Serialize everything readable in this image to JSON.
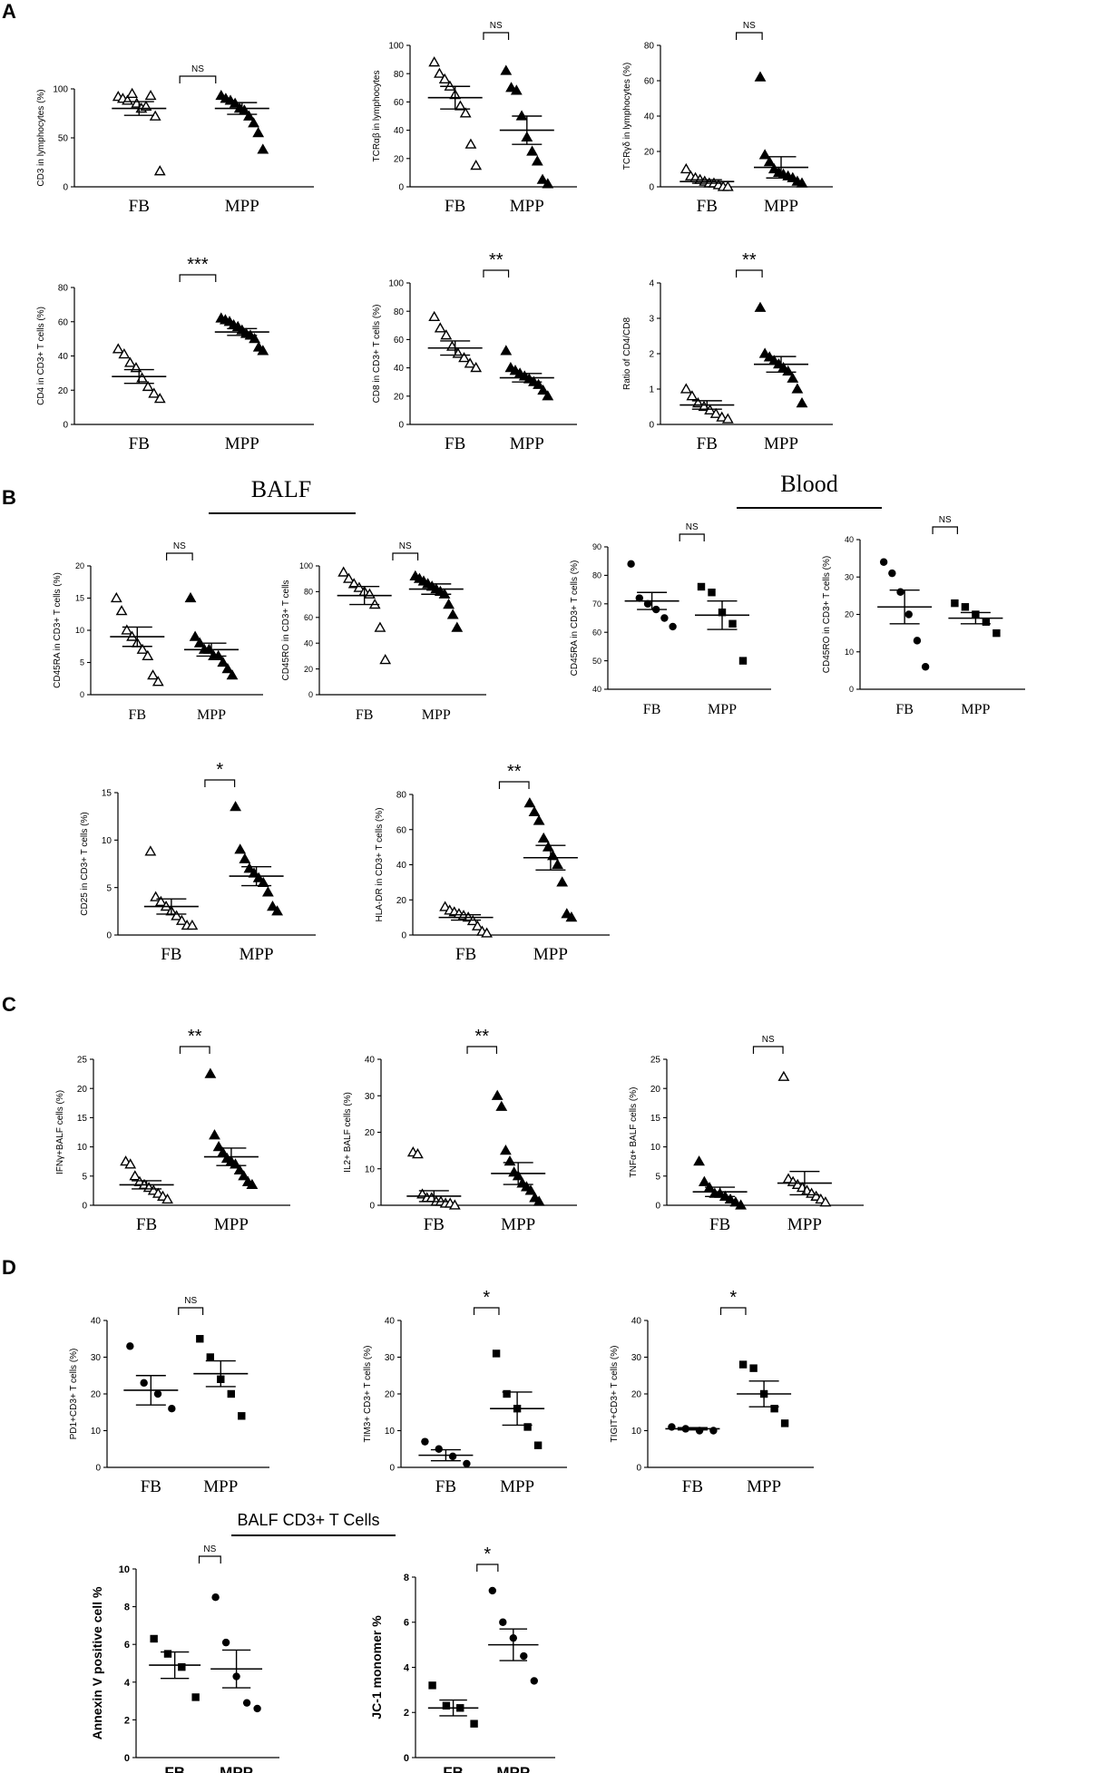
{
  "panels": [
    {
      "label": "A"
    },
    {
      "label": "B",
      "headers": [
        "BALF",
        "Blood"
      ]
    },
    {
      "label": "C"
    },
    {
      "label": "D",
      "headers": [
        "BALF CD3+ T Cells"
      ]
    }
  ],
  "chart_data": [
    {
      "id": "a1",
      "type": "scatter",
      "ylabel": "CD3 in lymphocytes (%)",
      "ylim": [
        0,
        100
      ],
      "yticks": [
        0,
        50,
        100
      ],
      "categories": [
        "FB",
        "MPP"
      ],
      "significance": "NS",
      "markers": [
        "triangle-open",
        "triangle"
      ],
      "series": [
        {
          "values": [
            92,
            90,
            88,
            95,
            85,
            80,
            82,
            93,
            72,
            16
          ],
          "mean": 80,
          "sem": 7
        },
        {
          "values": [
            93,
            90,
            88,
            85,
            80,
            78,
            72,
            65,
            55,
            38
          ],
          "mean": 80,
          "sem": 6
        }
      ]
    },
    {
      "id": "a2",
      "type": "scatter",
      "ylabel": "TCRαβ in lymphocytes",
      "ylim": [
        0,
        100
      ],
      "yticks": [
        0,
        20,
        40,
        60,
        80,
        100
      ],
      "categories": [
        "FB",
        "MPP"
      ],
      "significance": "NS",
      "markers": [
        "triangle-open",
        "triangle"
      ],
      "series": [
        {
          "values": [
            88,
            80,
            76,
            71,
            65,
            57,
            52,
            30,
            15
          ],
          "mean": 63,
          "sem": 8
        },
        {
          "values": [
            82,
            70,
            68,
            50,
            35,
            25,
            18,
            5,
            2
          ],
          "mean": 40,
          "sem": 10
        }
      ]
    },
    {
      "id": "a3",
      "type": "scatter",
      "ylabel": "TCRγδ in lymphocytes (%)",
      "ylim": [
        0,
        80
      ],
      "yticks": [
        0,
        20,
        40,
        60,
        80
      ],
      "categories": [
        "FB",
        "MPP"
      ],
      "significance": "NS",
      "markers": [
        "triangle-open",
        "triangle"
      ],
      "series": [
        {
          "values": [
            10,
            6,
            5,
            4,
            3,
            2,
            2,
            1,
            0,
            0
          ],
          "mean": 3,
          "sem": 1
        },
        {
          "values": [
            62,
            18,
            14,
            10,
            8,
            7,
            6,
            5,
            3,
            2
          ],
          "mean": 11,
          "sem": 6
        }
      ]
    },
    {
      "id": "a4",
      "type": "scatter",
      "ylabel": "CD4 in CD3+ T cells (%)",
      "ylim": [
        0,
        80
      ],
      "yticks": [
        0,
        20,
        40,
        60,
        80
      ],
      "categories": [
        "FB",
        "MPP"
      ],
      "significance": "***",
      "markers": [
        "triangle-open",
        "triangle"
      ],
      "series": [
        {
          "values": [
            44,
            41,
            36,
            33,
            27,
            22,
            18,
            15
          ],
          "mean": 28,
          "sem": 4
        },
        {
          "values": [
            62,
            61,
            60,
            58,
            57,
            55,
            53,
            52,
            50,
            45,
            43
          ],
          "mean": 54,
          "sem": 2
        }
      ]
    },
    {
      "id": "a5",
      "type": "scatter",
      "ylabel": "CD8 in CD3+ T cells (%)",
      "ylim": [
        0,
        100
      ],
      "yticks": [
        0,
        20,
        40,
        60,
        80,
        100
      ],
      "categories": [
        "FB",
        "MPP"
      ],
      "significance": "**",
      "markers": [
        "triangle-open",
        "triangle"
      ],
      "series": [
        {
          "values": [
            76,
            68,
            63,
            55,
            50,
            47,
            43,
            40
          ],
          "mean": 54,
          "sem": 5
        },
        {
          "values": [
            52,
            40,
            38,
            36,
            34,
            32,
            30,
            28,
            24,
            20
          ],
          "mean": 33,
          "sem": 3
        }
      ]
    },
    {
      "id": "a6",
      "type": "scatter",
      "ylabel": "Ratio of CD4/CD8",
      "ylim": [
        0,
        4
      ],
      "yticks": [
        0,
        1,
        2,
        3,
        4
      ],
      "categories": [
        "FB",
        "MPP"
      ],
      "significance": "**",
      "markers": [
        "triangle-open",
        "triangle"
      ],
      "series": [
        {
          "values": [
            1.0,
            0.8,
            0.6,
            0.5,
            0.4,
            0.3,
            0.2,
            0.15
          ],
          "mean": 0.55,
          "sem": 0.12
        },
        {
          "values": [
            3.3,
            2.0,
            1.9,
            1.8,
            1.7,
            1.6,
            1.5,
            1.3,
            1.0,
            0.6
          ],
          "mean": 1.7,
          "sem": 0.22
        }
      ]
    },
    {
      "id": "b1",
      "type": "scatter",
      "ylabel": "CD45RA in CD3+ T cells (%)",
      "ylim": [
        0,
        20
      ],
      "yticks": [
        0,
        5,
        10,
        15,
        20
      ],
      "categories": [
        "FB",
        "MPP"
      ],
      "significance": "NS",
      "markers": [
        "triangle-open",
        "triangle"
      ],
      "series": [
        {
          "values": [
            15,
            13,
            10,
            9,
            8,
            7,
            6,
            3,
            2
          ],
          "mean": 9,
          "sem": 1.5
        },
        {
          "values": [
            15,
            9,
            8,
            7,
            7,
            6,
            6,
            5,
            4,
            3
          ],
          "mean": 7,
          "sem": 1
        }
      ]
    },
    {
      "id": "b2",
      "type": "scatter",
      "ylabel": "CD45RO in CD3+ T cells",
      "ylim": [
        0,
        100
      ],
      "yticks": [
        0,
        20,
        40,
        60,
        80,
        100
      ],
      "categories": [
        "FB",
        "MPP"
      ],
      "significance": "NS",
      "markers": [
        "triangle-open",
        "triangle"
      ],
      "series": [
        {
          "values": [
            95,
            90,
            86,
            83,
            80,
            78,
            70,
            52,
            27
          ],
          "mean": 77,
          "sem": 7
        },
        {
          "values": [
            92,
            90,
            88,
            86,
            84,
            82,
            80,
            78,
            70,
            62,
            52
          ],
          "mean": 82,
          "sem": 4
        }
      ]
    },
    {
      "id": "b3",
      "type": "scatter",
      "ylabel": "CD45RA in CD3+ T cells (%)",
      "ylim": [
        40,
        90
      ],
      "yticks": [
        40,
        50,
        60,
        70,
        80,
        90
      ],
      "categories": [
        "FB",
        "MPP"
      ],
      "significance": "NS",
      "markers": [
        "circle",
        "square"
      ],
      "series": [
        {
          "values": [
            84,
            72,
            70,
            68,
            65,
            62
          ],
          "mean": 71,
          "sem": 3
        },
        {
          "values": [
            76,
            74,
            67,
            63,
            50
          ],
          "mean": 66,
          "sem": 5
        }
      ]
    },
    {
      "id": "b4",
      "type": "scatter",
      "ylabel": "CD45RO in CD3+ T cells (%)",
      "ylim": [
        0,
        40
      ],
      "yticks": [
        0,
        10,
        20,
        30,
        40
      ],
      "categories": [
        "FB",
        "MPP"
      ],
      "significance": "NS",
      "markers": [
        "circle",
        "square"
      ],
      "series": [
        {
          "values": [
            34,
            31,
            26,
            20,
            13,
            6
          ],
          "mean": 22,
          "sem": 4.5
        },
        {
          "values": [
            23,
            22,
            20,
            18,
            15
          ],
          "mean": 19,
          "sem": 1.5
        }
      ]
    },
    {
      "id": "b5",
      "type": "scatter",
      "ylabel": "CD25 in CD3+ T cells (%)",
      "ylim": [
        0,
        15
      ],
      "yticks": [
        0,
        5,
        10,
        15
      ],
      "categories": [
        "FB",
        "MPP"
      ],
      "significance": "*",
      "markers": [
        "triangle-open",
        "triangle"
      ],
      "series": [
        {
          "values": [
            8.8,
            4,
            3.5,
            3,
            2.5,
            2,
            1.5,
            1,
            1
          ],
          "mean": 3,
          "sem": 0.8
        },
        {
          "values": [
            13.5,
            9,
            8,
            7,
            6.5,
            6,
            5.5,
            4.5,
            3,
            2.5
          ],
          "mean": 6.2,
          "sem": 1
        }
      ]
    },
    {
      "id": "b6",
      "type": "scatter",
      "ylabel": "HLA-DR in CD3+ T cells (%)",
      "ylim": [
        0,
        80
      ],
      "yticks": [
        0,
        20,
        40,
        60,
        80
      ],
      "categories": [
        "FB",
        "MPP"
      ],
      "significance": "**",
      "markers": [
        "triangle-open",
        "triangle"
      ],
      "series": [
        {
          "values": [
            16,
            14,
            13,
            12,
            11,
            10,
            8,
            5,
            2,
            1
          ],
          "mean": 10,
          "sem": 1.5
        },
        {
          "values": [
            75,
            70,
            65,
            55,
            50,
            45,
            40,
            30,
            12,
            10
          ],
          "mean": 44,
          "sem": 7
        }
      ]
    },
    {
      "id": "c1",
      "type": "scatter",
      "ylabel": "IFNγ+BALF cells (%)",
      "ylim": [
        0,
        25
      ],
      "yticks": [
        0,
        5,
        10,
        15,
        20,
        25
      ],
      "categories": [
        "FB",
        "MPP"
      ],
      "significance": "**",
      "markers": [
        "triangle-open",
        "triangle"
      ],
      "series": [
        {
          "values": [
            7.5,
            7,
            5,
            4,
            3.5,
            3,
            2.5,
            2,
            1.5,
            1
          ],
          "mean": 3.5,
          "sem": 0.7
        },
        {
          "values": [
            22.5,
            12,
            10,
            9,
            8,
            7.5,
            7,
            6,
            5,
            4,
            3.5
          ],
          "mean": 8.3,
          "sem": 1.5
        }
      ]
    },
    {
      "id": "c2",
      "type": "scatter",
      "ylabel": "IL2+ BALF cells (%)",
      "ylim": [
        0,
        40
      ],
      "yticks": [
        0,
        10,
        20,
        30,
        40
      ],
      "categories": [
        "FB",
        "MPP"
      ],
      "significance": "**",
      "markers": [
        "triangle-open",
        "triangle"
      ],
      "series": [
        {
          "values": [
            14.5,
            14,
            3,
            2,
            2,
            1,
            1,
            0.5,
            0.5,
            0
          ],
          "mean": 2.5,
          "sem": 1.5
        },
        {
          "values": [
            30,
            27,
            15,
            12,
            9,
            8,
            6,
            5,
            4,
            2,
            1
          ],
          "mean": 8.7,
          "sem": 3
        }
      ]
    },
    {
      "id": "c3",
      "type": "scatter",
      "ylabel": "TNFα+ BALF cells (%)",
      "ylim": [
        0,
        25
      ],
      "yticks": [
        0,
        5,
        10,
        15,
        20,
        25
      ],
      "categories": [
        "FB",
        "MPP"
      ],
      "significance": "NS",
      "markers": [
        "triangle",
        "triangle-open"
      ],
      "series": [
        {
          "values": [
            7.5,
            4,
            3,
            2,
            2,
            1.5,
            1,
            0.5,
            0
          ],
          "mean": 2.3,
          "sem": 0.8
        },
        {
          "values": [
            22,
            4.5,
            4,
            3.5,
            3,
            2.5,
            2,
            1.5,
            1,
            0.5
          ],
          "mean": 3.8,
          "sem": 2
        }
      ]
    },
    {
      "id": "d1",
      "type": "scatter",
      "ylabel": "PD1+CD3+ T cells (%)",
      "ylim": [
        0,
        40
      ],
      "yticks": [
        0,
        10,
        20,
        30,
        40
      ],
      "ytick_labels": [
        "0",
        "10",
        "20",
        "30",
        "40"
      ],
      "categories": [
        "FB",
        "MPP"
      ],
      "significance": "NS",
      "markers": [
        "circle",
        "square"
      ],
      "series": [
        {
          "values": [
            33,
            23,
            20,
            16
          ],
          "mean": 21,
          "sem": 4
        },
        {
          "values": [
            35,
            30,
            24,
            20,
            14
          ],
          "mean": 25.5,
          "sem": 3.5
        }
      ]
    },
    {
      "id": "d2",
      "type": "scatter",
      "ylabel": "TIM3+ CD3+ T cells (%)",
      "ylim": [
        0,
        40
      ],
      "yticks": [
        0,
        10,
        20,
        30,
        40
      ],
      "categories": [
        "FB",
        "MPP"
      ],
      "significance": "*",
      "markers": [
        "circle",
        "square"
      ],
      "series": [
        {
          "values": [
            7,
            5,
            3,
            1
          ],
          "mean": 3.3,
          "sem": 1.5
        },
        {
          "values": [
            31,
            20,
            16,
            11,
            6
          ],
          "mean": 16,
          "sem": 4.5
        }
      ]
    },
    {
      "id": "d3",
      "type": "scatter",
      "ylabel": "TIGIT+CD3+ T cells (%)",
      "ylim": [
        0,
        40
      ],
      "yticks": [
        0,
        10,
        20,
        30,
        40
      ],
      "categories": [
        "FB",
        "MPP"
      ],
      "significance": "*",
      "markers": [
        "circle",
        "square"
      ],
      "series": [
        {
          "values": [
            11,
            10.5,
            10,
            10
          ],
          "mean": 10.5,
          "sem": 0.3
        },
        {
          "values": [
            28,
            27,
            20,
            16,
            12
          ],
          "mean": 20,
          "sem": 3.5
        }
      ]
    },
    {
      "id": "d4",
      "type": "scatter",
      "ylabel": "Annexin V positive cell %",
      "ylim": [
        0,
        10
      ],
      "yticks": [
        0,
        2,
        4,
        6,
        8,
        10
      ],
      "categories": [
        "FB",
        "MPP"
      ],
      "significance": "NS",
      "markers": [
        "square",
        "circle"
      ],
      "series": [
        {
          "values": [
            6.3,
            5.5,
            4.8,
            3.2
          ],
          "mean": 4.9,
          "sem": 0.7
        },
        {
          "values": [
            8.5,
            6.1,
            4.3,
            2.9,
            2.6
          ],
          "mean": 4.7,
          "sem": 1
        }
      ]
    },
    {
      "id": "d5",
      "type": "scatter",
      "ylabel": "JC-1 monomer %",
      "ylim": [
        0,
        8
      ],
      "yticks": [
        0,
        2,
        4,
        6,
        8
      ],
      "categories": [
        "FB",
        "MPP"
      ],
      "significance": "*",
      "markers": [
        "square",
        "circle"
      ],
      "series": [
        {
          "values": [
            3.2,
            2.3,
            2.2,
            1.5
          ],
          "mean": 2.2,
          "sem": 0.35
        },
        {
          "values": [
            7.4,
            6.0,
            5.3,
            4.5,
            3.4
          ],
          "mean": 5.0,
          "sem": 0.7
        }
      ]
    }
  ]
}
